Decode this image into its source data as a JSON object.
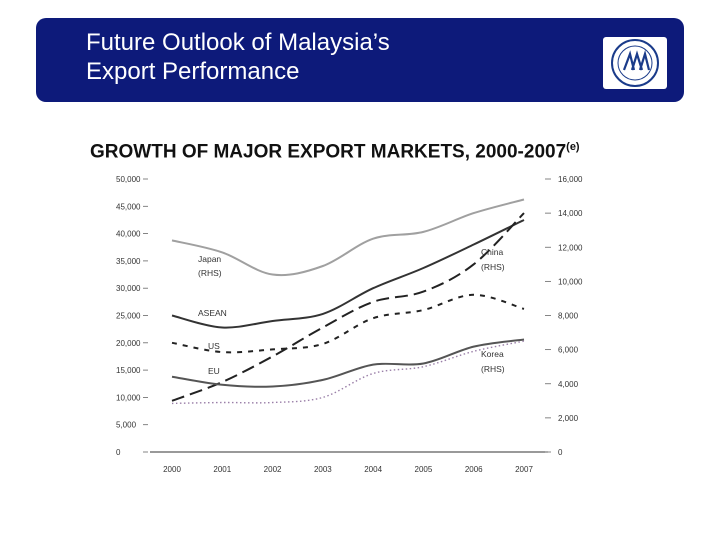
{
  "slide": {
    "title_line1": "Future Outlook of Malaysia’s",
    "title_line2": "Export Performance",
    "heading": "GROWTH OF MAJOR EXPORT MARKETS, 2000-2007",
    "heading_sup": "(e)"
  },
  "chart_data": {
    "type": "line",
    "x": [
      "2000",
      "2001",
      "2002",
      "2003",
      "2004",
      "2005",
      "2006",
      "2007"
    ],
    "left_axis": {
      "ticks": [
        "0",
        "5,000",
        "10,000",
        "15,000",
        "20,000",
        "25,000",
        "30,000",
        "35,000",
        "40,000",
        "45,000",
        "50,000"
      ],
      "ylim": [
        0,
        50000
      ]
    },
    "right_axis": {
      "ticks": [
        "0",
        "2,000",
        "4,000",
        "6,000",
        "8,000",
        "10,000",
        "12,000",
        "14,000",
        "16,000"
      ],
      "ylim": [
        0,
        16000
      ]
    },
    "series": [
      {
        "name": "Japan",
        "label": "Japan",
        "label2": "(RHS)",
        "axis": "right",
        "color": "#a0a0a0",
        "style": "solid",
        "values": [
          12400,
          11700,
          10400,
          10900,
          12500,
          12900,
          14000,
          14800
        ]
      },
      {
        "name": "ASEAN",
        "label": "ASEAN",
        "axis": "left",
        "color": "#333333",
        "style": "solid",
        "values": [
          25000,
          22800,
          24000,
          25300,
          30000,
          33700,
          38000,
          42500
        ]
      },
      {
        "name": "China",
        "label": "China",
        "label2": "(RHS)",
        "axis": "right",
        "color": "#222222",
        "style": "longdash",
        "values": [
          3000,
          4100,
          5600,
          7300,
          8800,
          9400,
          11000,
          14000
        ]
      },
      {
        "name": "US",
        "label": "US",
        "axis": "left",
        "color": "#222222",
        "style": "shortdash",
        "values": [
          20000,
          18300,
          18800,
          19800,
          24500,
          26000,
          28800,
          26200
        ]
      },
      {
        "name": "EU",
        "label": "EU",
        "axis": "left",
        "color": "#555555",
        "style": "solid",
        "values": [
          13800,
          12300,
          12000,
          13200,
          16000,
          16200,
          19300,
          20600
        ]
      },
      {
        "name": "Korea",
        "label": "Korea",
        "label2": "(RHS)",
        "axis": "right",
        "color": "#9a7fa8",
        "style": "dotted",
        "values": [
          2850,
          2900,
          2900,
          3200,
          4600,
          5000,
          5900,
          6500
        ]
      }
    ]
  }
}
